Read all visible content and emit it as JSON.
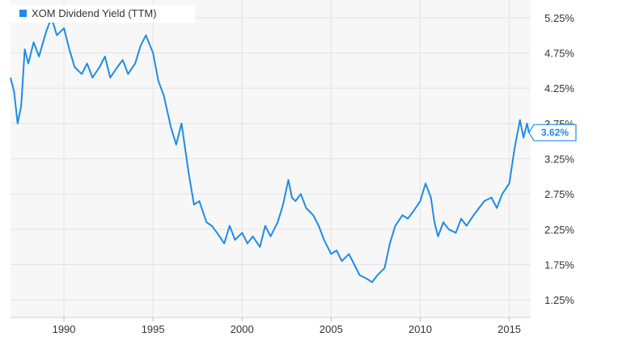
{
  "chart_data": {
    "type": "line",
    "title": "",
    "xlabel": "",
    "ylabel": "",
    "legend": {
      "label": "XOM Dividend Yield (TTM)",
      "placement": "top-left"
    },
    "colors": {
      "series": "#1f8ce6",
      "plot_background": "#f7f7f7",
      "grid": "#e3e3e3"
    },
    "grid": true,
    "xlim": [
      1987.0,
      2016.2
    ],
    "ylim": [
      1.0,
      5.5
    ],
    "x_ticks": [
      {
        "value": 1990,
        "label": "1990"
      },
      {
        "value": 1995,
        "label": "1995"
      },
      {
        "value": 2000,
        "label": "2000"
      },
      {
        "value": 2005,
        "label": "2005"
      },
      {
        "value": 2010,
        "label": "2010"
      },
      {
        "value": 2015,
        "label": "2015"
      }
    ],
    "y_ticks": [
      {
        "value": 5.25,
        "label": "5.25%"
      },
      {
        "value": 4.75,
        "label": "4.75%"
      },
      {
        "value": 4.25,
        "label": "4.25%"
      },
      {
        "value": 3.75,
        "label": "3.75%"
      },
      {
        "value": 3.25,
        "label": "3.25%"
      },
      {
        "value": 2.75,
        "label": "2.75%"
      },
      {
        "value": 2.25,
        "label": "2.25%"
      },
      {
        "value": 1.75,
        "label": "1.75%"
      },
      {
        "value": 1.25,
        "label": "1.25%"
      }
    ],
    "last_value": {
      "value": 3.62,
      "label": "3.62%"
    },
    "series": [
      {
        "name": "XOM Dividend Yield (TTM)",
        "x": [
          1987.0,
          1987.2,
          1987.4,
          1987.6,
          1987.8,
          1988.0,
          1988.3,
          1988.6,
          1989.0,
          1989.3,
          1989.6,
          1990.0,
          1990.3,
          1990.6,
          1991.0,
          1991.3,
          1991.6,
          1992.0,
          1992.3,
          1992.6,
          1993.0,
          1993.3,
          1993.6,
          1994.0,
          1994.3,
          1994.6,
          1995.0,
          1995.3,
          1995.6,
          1996.0,
          1996.3,
          1996.6,
          1997.0,
          1997.3,
          1997.6,
          1998.0,
          1998.3,
          1998.6,
          1999.0,
          1999.3,
          1999.6,
          2000.0,
          2000.3,
          2000.6,
          2001.0,
          2001.3,
          2001.6,
          2002.0,
          2002.3,
          2002.6,
          2002.8,
          2003.0,
          2003.3,
          2003.6,
          2004.0,
          2004.3,
          2004.6,
          2005.0,
          2005.3,
          2005.6,
          2006.0,
          2006.3,
          2006.6,
          2007.0,
          2007.3,
          2007.6,
          2007.8,
          2008.0,
          2008.3,
          2008.6,
          2009.0,
          2009.3,
          2009.6,
          2010.0,
          2010.3,
          2010.6,
          2010.8,
          2011.0,
          2011.3,
          2011.6,
          2012.0,
          2012.3,
          2012.6,
          2013.0,
          2013.3,
          2013.6,
          2014.0,
          2014.3,
          2014.6,
          2015.0,
          2015.3,
          2015.6,
          2015.8,
          2016.0,
          2016.1
        ],
        "values": [
          4.4,
          4.2,
          3.75,
          4.0,
          4.8,
          4.6,
          4.9,
          4.7,
          5.05,
          5.25,
          5.0,
          5.1,
          4.8,
          4.55,
          4.45,
          4.6,
          4.4,
          4.55,
          4.7,
          4.4,
          4.55,
          4.65,
          4.45,
          4.6,
          4.85,
          5.0,
          4.75,
          4.35,
          4.15,
          3.7,
          3.45,
          3.75,
          3.05,
          2.6,
          2.65,
          2.35,
          2.3,
          2.2,
          2.05,
          2.3,
          2.1,
          2.2,
          2.05,
          2.15,
          2.0,
          2.3,
          2.15,
          2.35,
          2.6,
          2.95,
          2.7,
          2.65,
          2.75,
          2.55,
          2.45,
          2.3,
          2.1,
          1.9,
          1.95,
          1.8,
          1.9,
          1.75,
          1.6,
          1.55,
          1.5,
          1.6,
          1.65,
          1.7,
          2.05,
          2.3,
          2.45,
          2.4,
          2.5,
          2.65,
          2.9,
          2.7,
          2.35,
          2.15,
          2.35,
          2.25,
          2.2,
          2.4,
          2.3,
          2.45,
          2.55,
          2.65,
          2.7,
          2.55,
          2.75,
          2.9,
          3.4,
          3.8,
          3.55,
          3.75,
          3.62
        ]
      }
    ]
  }
}
